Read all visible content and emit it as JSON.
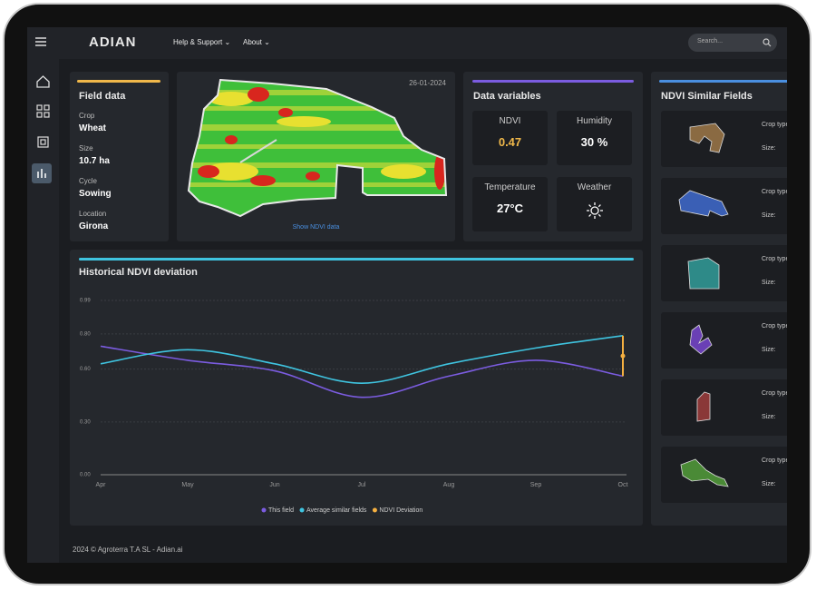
{
  "topbar": {
    "logo": "ADIAN",
    "menu": [
      "Help & Support",
      "About"
    ],
    "search_placeholder": "Search..."
  },
  "field_data": {
    "title": "Field data",
    "items": [
      {
        "label": "Crop",
        "value": "Wheat"
      },
      {
        "label": "Size",
        "value": "10.7 ha"
      },
      {
        "label": "Cycle",
        "value": "Sowing"
      },
      {
        "label": "Location",
        "value": "Girona"
      }
    ]
  },
  "map": {
    "date": "26-01-2024",
    "link": "Show NDVI data"
  },
  "data_variables": {
    "title": "Data variables",
    "items": [
      {
        "label": "NDVI",
        "value": "0.47"
      },
      {
        "label": "Humidity",
        "value": "30 %"
      },
      {
        "label": "Temperature",
        "value": "27°C"
      },
      {
        "label": "Weather"
      }
    ]
  },
  "chart_data": {
    "type": "line",
    "title": "Historical NDVI deviation",
    "categories": [
      "Apr",
      "May",
      "Jun",
      "Jul",
      "Aug",
      "Sep",
      "Oct"
    ],
    "series": [
      {
        "name": "This field",
        "color": "#7b5ce0",
        "values": [
          0.73,
          0.65,
          0.59,
          0.44,
          0.56,
          0.65,
          0.56
        ]
      },
      {
        "name": "Average similar fields",
        "color": "#3fc4e0",
        "values": [
          0.63,
          0.71,
          0.63,
          0.52,
          0.63,
          0.72,
          0.79
        ]
      },
      {
        "name": "NDVI Deviation",
        "color": "#f5b041",
        "values": [
          null,
          null,
          null,
          null,
          null,
          null,
          0.23
        ]
      }
    ],
    "ylim": [
      0,
      0.99
    ],
    "yticks": [
      {
        "value": 0,
        "label": "0.00"
      },
      {
        "value": 0.3,
        "label": "0.30"
      },
      {
        "value": 0.6,
        "label": "0.60"
      },
      {
        "value": 0.8,
        "label": "0.80"
      },
      0.99
    ],
    "grid": true
  },
  "similar_fields": {
    "title": "NDVI Similar Fields",
    "items": [
      {
        "crop": "Crop type",
        "size": "Size:",
        "color": "#8a6a42"
      },
      {
        "crop": "Crop type",
        "size": "Size:",
        "color": "#3a5fb5"
      },
      {
        "crop": "Crop type",
        "size": "Size:",
        "color": "#2e8a88"
      },
      {
        "crop": "Crop type",
        "size": "Size:",
        "color": "#6a40b5"
      },
      {
        "crop": "Crop type",
        "size": "Size:",
        "color": "#8a3838"
      },
      {
        "crop": "Crop type",
        "size": "Size:",
        "color": "#4a8a36"
      }
    ]
  },
  "footer": "2024 © Agroterra T.A SL - Adian.ai"
}
